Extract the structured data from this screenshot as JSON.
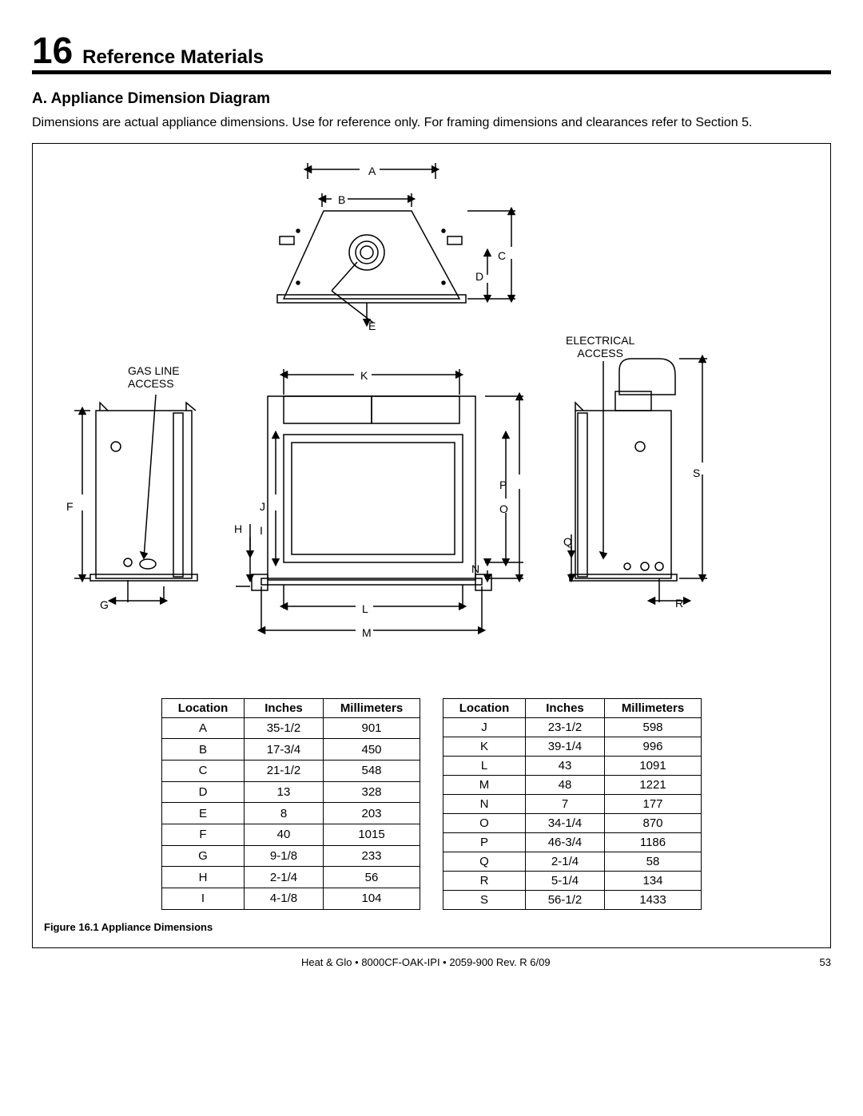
{
  "section": {
    "number": "16",
    "title": "Reference Materials"
  },
  "subsection": {
    "heading": "A.  Appliance Dimension Diagram",
    "body": "Dimensions are actual appliance dimensions. Use for reference only. For framing dimensions and clearances refer to Section 5."
  },
  "diagram": {
    "labels": {
      "gas_line": "GAS LINE\nACCESS",
      "electrical": "ELECTRICAL\nACCESS",
      "dims": {
        "A": "A",
        "B": "B",
        "C": "C",
        "D": "D",
        "E": "E",
        "F": "F",
        "G": "G",
        "H": "H",
        "I": "I",
        "J": "J",
        "K": "K",
        "L": "L",
        "M": "M",
        "N": "N",
        "O": "O",
        "P": "P",
        "Q": "Q",
        "R": "R",
        "S": "S"
      }
    },
    "stroke": "#000000",
    "fill": "#ffffff"
  },
  "table": {
    "headers": {
      "location": "Location",
      "inches": "Inches",
      "mm": "Millimeters"
    },
    "left": [
      {
        "loc": "A",
        "in": "35-1/2",
        "mm": "901"
      },
      {
        "loc": "B",
        "in": "17-3/4",
        "mm": "450"
      },
      {
        "loc": "C",
        "in": "21-1/2",
        "mm": "548"
      },
      {
        "loc": "D",
        "in": "13",
        "mm": "328"
      },
      {
        "loc": "E",
        "in": "8",
        "mm": "203"
      },
      {
        "loc": "F",
        "in": "40",
        "mm": "1015"
      },
      {
        "loc": "G",
        "in": "9-1/8",
        "mm": "233"
      },
      {
        "loc": "H",
        "in": "2-1/4",
        "mm": "56"
      },
      {
        "loc": "I",
        "in": "4-1/8",
        "mm": "104"
      }
    ],
    "right": [
      {
        "loc": "J",
        "in": "23-1/2",
        "mm": "598"
      },
      {
        "loc": "K",
        "in": "39-1/4",
        "mm": "996"
      },
      {
        "loc": "L",
        "in": "43",
        "mm": "1091"
      },
      {
        "loc": "M",
        "in": "48",
        "mm": "1221"
      },
      {
        "loc": "N",
        "in": "7",
        "mm": "177"
      },
      {
        "loc": "O",
        "in": "34-1/4",
        "mm": "870"
      },
      {
        "loc": "P",
        "in": "46-3/4",
        "mm": "1186"
      },
      {
        "loc": "Q",
        "in": "2-1/4",
        "mm": "58"
      },
      {
        "loc": "R",
        "in": "5-1/4",
        "mm": "134"
      },
      {
        "loc": "S",
        "in": "56-1/2",
        "mm": "1433"
      }
    ]
  },
  "caption": "Figure 16.1  Appliance Dimensions",
  "footer": {
    "center": "Heat & Glo  •  8000CF-OAK-IPI  •  2059-900  Rev. R   6/09",
    "page": "53"
  }
}
